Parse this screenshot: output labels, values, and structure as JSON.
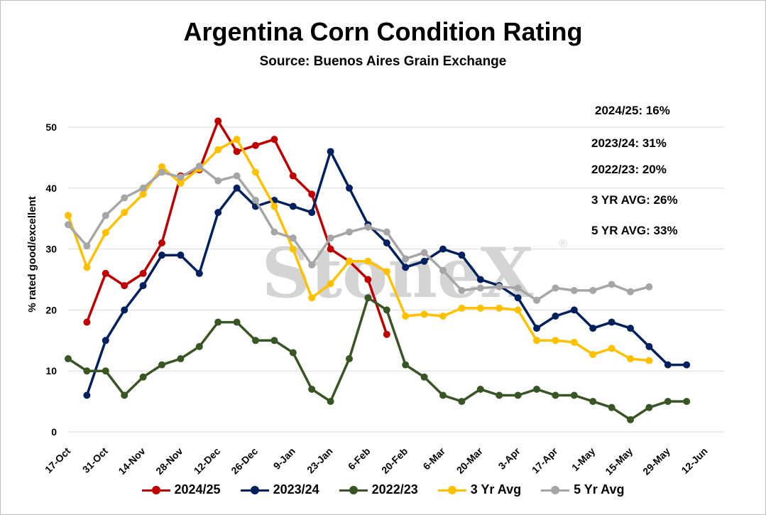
{
  "chart_data": {
    "type": "line",
    "title": "Argentina Corn Condition Rating",
    "subtitle": "Source: Buenos Aires Grain Exchange",
    "ylabel": "% rated good/excellent",
    "xlabel": "",
    "ylim": [
      0,
      50
    ],
    "yticks": [
      0,
      10,
      20,
      30,
      40,
      50
    ],
    "x_tick_labels": [
      "17-Oct",
      "31-Oct",
      "14-Nov",
      "28-Nov",
      "12-Dec",
      "26-Dec",
      "9-Jan",
      "23-Jan",
      "6-Feb",
      "20-Feb",
      "6-Mar",
      "20-Mar",
      "3-Apr",
      "17-Apr",
      "1-May",
      "15-May",
      "29-May",
      "12-Jun"
    ],
    "x_unit": "week index (0 = 17-Oct, weekly steps)",
    "grid": "horizontal",
    "legend_position": "bottom",
    "watermark": "StoneX",
    "annotations": [
      "2024/25: 16%",
      "2023/24: 31%",
      "2022/23: 20%",
      "3 YR AVG: 26%",
      "5 YR AVG: 33%"
    ],
    "series": [
      {
        "name": "2024/25",
        "color": "#c00000",
        "points": [
          [
            1,
            18
          ],
          [
            2,
            26
          ],
          [
            3,
            24
          ],
          [
            4,
            26
          ],
          [
            5,
            31
          ],
          [
            6,
            42
          ],
          [
            7,
            43
          ],
          [
            8,
            51
          ],
          [
            9,
            46
          ],
          [
            10,
            47
          ],
          [
            11,
            48
          ],
          [
            12,
            42
          ],
          [
            13,
            39
          ],
          [
            14,
            30
          ],
          [
            15,
            28
          ],
          [
            16,
            25
          ],
          [
            17,
            16
          ]
        ]
      },
      {
        "name": "2023/24",
        "color": "#002060",
        "points": [
          [
            1,
            6
          ],
          [
            2,
            15
          ],
          [
            3,
            20
          ],
          [
            4,
            24
          ],
          [
            5,
            29
          ],
          [
            6,
            29
          ],
          [
            7,
            26
          ],
          [
            8,
            36
          ],
          [
            9,
            40
          ],
          [
            10,
            37
          ],
          [
            11,
            38
          ],
          [
            12,
            37
          ],
          [
            13,
            36
          ],
          [
            14,
            46
          ],
          [
            15,
            40
          ],
          [
            16,
            34
          ],
          [
            17,
            31
          ],
          [
            18,
            27
          ],
          [
            19,
            28
          ],
          [
            20,
            30
          ],
          [
            21,
            29
          ],
          [
            22,
            25
          ],
          [
            23,
            24
          ],
          [
            24,
            22
          ],
          [
            25,
            17
          ],
          [
            26,
            19
          ],
          [
            27,
            20
          ],
          [
            28,
            17
          ],
          [
            29,
            18
          ],
          [
            30,
            17
          ],
          [
            31,
            14
          ],
          [
            32,
            11
          ],
          [
            33,
            11
          ]
        ]
      },
      {
        "name": "2022/23",
        "color": "#375623",
        "points": [
          [
            0,
            12
          ],
          [
            1,
            10
          ],
          [
            2,
            10
          ],
          [
            3,
            6
          ],
          [
            4,
            9
          ],
          [
            5,
            11
          ],
          [
            6,
            12
          ],
          [
            7,
            14
          ],
          [
            8,
            18
          ],
          [
            9,
            18
          ],
          [
            10,
            15
          ],
          [
            11,
            15
          ],
          [
            12,
            13
          ],
          [
            13,
            7
          ],
          [
            14,
            5
          ],
          [
            15,
            12
          ],
          [
            16,
            22
          ],
          [
            17,
            20
          ],
          [
            18,
            11
          ],
          [
            19,
            9
          ],
          [
            20,
            6
          ],
          [
            21,
            5
          ],
          [
            22,
            7
          ],
          [
            23,
            6
          ],
          [
            24,
            6
          ],
          [
            25,
            7
          ],
          [
            26,
            6
          ],
          [
            27,
            6
          ],
          [
            28,
            5
          ],
          [
            29,
            4
          ],
          [
            30,
            2
          ],
          [
            31,
            4
          ],
          [
            32,
            5
          ],
          [
            33,
            5
          ]
        ]
      },
      {
        "name": "3 Yr Avg",
        "color": "#ffc000",
        "points": [
          [
            0,
            35.5
          ],
          [
            1,
            27
          ],
          [
            2,
            32.7
          ],
          [
            3,
            36
          ],
          [
            4,
            39
          ],
          [
            5,
            43.5
          ],
          [
            6,
            40.8
          ],
          [
            7,
            43.2
          ],
          [
            8,
            46.3
          ],
          [
            9,
            48
          ],
          [
            10,
            42.6
          ],
          [
            11,
            37
          ],
          [
            12,
            30
          ],
          [
            13,
            22
          ],
          [
            14,
            24.3
          ],
          [
            15,
            28
          ],
          [
            16,
            28
          ],
          [
            17,
            26.3
          ],
          [
            18,
            19
          ],
          [
            19,
            19.3
          ],
          [
            20,
            19
          ],
          [
            21,
            20.3
          ],
          [
            22,
            20.3
          ],
          [
            23,
            20.3
          ],
          [
            24,
            20
          ],
          [
            25,
            15
          ],
          [
            26,
            15
          ],
          [
            27,
            14.7
          ],
          [
            28,
            12.7
          ],
          [
            29,
            13.7
          ],
          [
            30,
            12
          ],
          [
            31,
            11.7
          ]
        ]
      },
      {
        "name": "5 Yr Avg",
        "color": "#a6a6a6",
        "points": [
          [
            0,
            34
          ],
          [
            1,
            30.5
          ],
          [
            2,
            35.5
          ],
          [
            3,
            38.4
          ],
          [
            4,
            40
          ],
          [
            5,
            42.6
          ],
          [
            6,
            41.8
          ],
          [
            7,
            43.6
          ],
          [
            8,
            41.2
          ],
          [
            9,
            42
          ],
          [
            10,
            38
          ],
          [
            11,
            32.8
          ],
          [
            12,
            31.8
          ],
          [
            13,
            27.4
          ],
          [
            14,
            31.8
          ],
          [
            15,
            32.8
          ],
          [
            16,
            33.6
          ],
          [
            17,
            32.8
          ],
          [
            18,
            28.4
          ],
          [
            19,
            29.4
          ],
          [
            20,
            26.5
          ],
          [
            21,
            23.2
          ],
          [
            22,
            23.6
          ],
          [
            23,
            23.8
          ],
          [
            24,
            23.6
          ],
          [
            25,
            21.6
          ],
          [
            26,
            23.6
          ],
          [
            27,
            23.2
          ],
          [
            28,
            23.2
          ],
          [
            29,
            24.2
          ],
          [
            30,
            23
          ],
          [
            31,
            23.8
          ]
        ]
      }
    ]
  }
}
